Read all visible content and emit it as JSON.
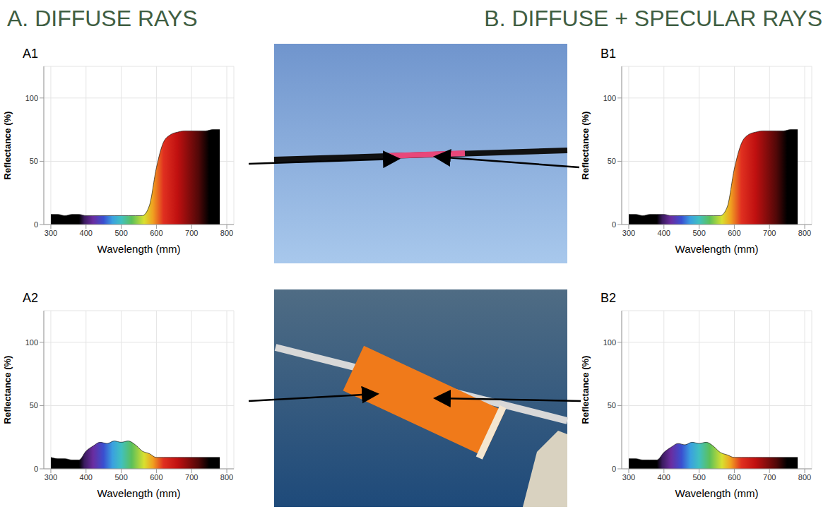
{
  "headings": [
    "A. DIFFUSE RAYS",
    "B. DIFFUSE + SPECULAR RAYS"
  ],
  "chart_data": [
    {
      "type": "area",
      "title": "A1",
      "x_label": "Wavelength (mm)",
      "y_label": "Reflectance (%)",
      "x": [
        300,
        320,
        340,
        360,
        380,
        400,
        420,
        440,
        460,
        480,
        500,
        520,
        540,
        560,
        580,
        600,
        620,
        640,
        660,
        680,
        700,
        720,
        740,
        760,
        780
      ],
      "values": [
        8,
        8,
        7,
        8,
        8,
        7,
        7,
        7,
        7,
        7,
        7,
        7,
        7,
        7,
        15,
        45,
        65,
        71,
        73,
        74,
        74,
        74,
        74,
        75,
        75
      ],
      "xlim": [
        280,
        820
      ],
      "xticks": [
        300,
        400,
        500,
        600,
        700,
        800
      ],
      "ylim": [
        0,
        125
      ],
      "yticks": [
        0,
        50,
        100
      ],
      "grid": true
    },
    {
      "type": "area",
      "title": "A2",
      "x_label": "Wavelength (mm)",
      "y_label": "Reflectance (%)",
      "x": [
        300,
        320,
        340,
        360,
        380,
        400,
        420,
        440,
        460,
        480,
        500,
        520,
        540,
        560,
        580,
        600,
        620,
        640,
        660,
        680,
        700,
        720,
        740,
        760,
        780
      ],
      "values": [
        9,
        8,
        8,
        7,
        7,
        14,
        18,
        21,
        20,
        22,
        21,
        22,
        19,
        14,
        12,
        9,
        9,
        9,
        9,
        9,
        9,
        9,
        9,
        9,
        9
      ],
      "xlim": [
        280,
        820
      ],
      "xticks": [
        300,
        400,
        500,
        600,
        700,
        800
      ],
      "ylim": [
        0,
        125
      ],
      "yticks": [
        0,
        50,
        100
      ],
      "grid": true
    },
    {
      "type": "area",
      "title": "B1",
      "x_label": "Wavelength (mm)",
      "y_label": "Reflectance (%)",
      "x": [
        300,
        320,
        340,
        360,
        380,
        400,
        420,
        440,
        460,
        480,
        500,
        520,
        540,
        560,
        580,
        600,
        620,
        640,
        660,
        680,
        700,
        720,
        740,
        760,
        780
      ],
      "values": [
        8,
        8,
        7,
        8,
        8,
        8,
        7,
        7,
        7,
        7,
        7,
        7,
        7,
        7,
        14,
        44,
        64,
        71,
        73,
        74,
        74,
        74,
        74,
        75,
        75
      ],
      "xlim": [
        280,
        820
      ],
      "xticks": [
        300,
        400,
        500,
        600,
        700,
        800
      ],
      "ylim": [
        0,
        125
      ],
      "yticks": [
        0,
        50,
        100
      ],
      "grid": true
    },
    {
      "type": "area",
      "title": "B2",
      "x_label": "Wavelength (mm)",
      "y_label": "Reflectance (%)",
      "x": [
        300,
        320,
        340,
        360,
        380,
        400,
        420,
        440,
        460,
        480,
        500,
        520,
        540,
        560,
        580,
        600,
        620,
        640,
        660,
        680,
        700,
        720,
        740,
        760,
        780
      ],
      "values": [
        8,
        8,
        7,
        7,
        7,
        13,
        17,
        20,
        19,
        21,
        20,
        21,
        18,
        13,
        11,
        9,
        9,
        9,
        9,
        9,
        9,
        9,
        9,
        9,
        9
      ],
      "xlim": [
        280,
        820
      ],
      "xticks": [
        300,
        400,
        500,
        600,
        700,
        800
      ],
      "ylim": [
        0,
        125
      ],
      "yticks": [
        0,
        50,
        100
      ],
      "grid": true
    }
  ]
}
